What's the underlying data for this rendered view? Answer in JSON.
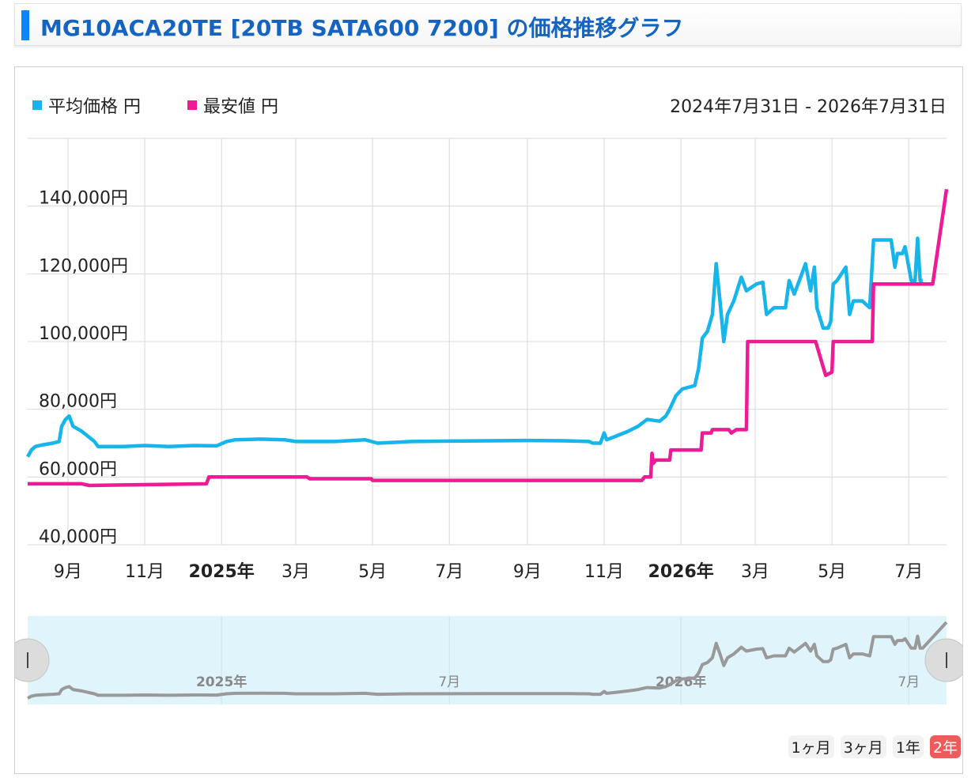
{
  "page": {
    "title": "MG10ACA20TE [20TB SATA600 7200] の価格推移グラフ"
  },
  "chart_data": {
    "type": "line",
    "date_range_label": "2024年7月31日 - 2026年7月31日",
    "x_range": [
      "2024-07-31",
      "2026-07-31"
    ],
    "ylim": [
      40000,
      160000
    ],
    "y_ticks": [
      {
        "value": 40000,
        "label": "40,000円"
      },
      {
        "value": 60000,
        "label": "60,000円"
      },
      {
        "value": 80000,
        "label": "80,000円"
      },
      {
        "value": 100000,
        "label": "100,000円"
      },
      {
        "value": 120000,
        "label": "120,000円"
      },
      {
        "value": 140000,
        "label": "140,000円"
      }
    ],
    "x_ticks": [
      {
        "date": "2024-09-01",
        "label": "9月",
        "bold": false
      },
      {
        "date": "2024-11-01",
        "label": "11月",
        "bold": false
      },
      {
        "date": "2025-01-01",
        "label": "2025年",
        "bold": true
      },
      {
        "date": "2025-03-01",
        "label": "3月",
        "bold": false
      },
      {
        "date": "2025-05-01",
        "label": "5月",
        "bold": false
      },
      {
        "date": "2025-07-01",
        "label": "7月",
        "bold": false
      },
      {
        "date": "2025-09-01",
        "label": "9月",
        "bold": false
      },
      {
        "date": "2025-11-01",
        "label": "11月",
        "bold": false
      },
      {
        "date": "2026-01-01",
        "label": "2026年",
        "bold": true
      },
      {
        "date": "2026-03-01",
        "label": "3月",
        "bold": false
      },
      {
        "date": "2026-05-01",
        "label": "5月",
        "bold": false
      },
      {
        "date": "2026-07-01",
        "label": "7月",
        "bold": false
      }
    ],
    "grid": true,
    "legend_position": "top-left",
    "series": [
      {
        "name": "平均価格 円",
        "color": "#16b5ea",
        "points": [
          [
            "2024-07-31",
            66000
          ],
          [
            "2024-08-03",
            68000
          ],
          [
            "2024-08-06",
            69000
          ],
          [
            "2024-08-12",
            69500
          ],
          [
            "2024-08-20",
            70000
          ],
          [
            "2024-08-25",
            70500
          ],
          [
            "2024-08-27",
            75000
          ],
          [
            "2024-08-30",
            77000
          ],
          [
            "2024-09-02",
            78000
          ],
          [
            "2024-09-05",
            75000
          ],
          [
            "2024-09-12",
            73500
          ],
          [
            "2024-09-22",
            70500
          ],
          [
            "2024-09-25",
            69000
          ],
          [
            "2024-10-15",
            69000
          ],
          [
            "2024-11-01",
            69300
          ],
          [
            "2024-11-20",
            69000
          ],
          [
            "2024-12-10",
            69300
          ],
          [
            "2024-12-28",
            69200
          ],
          [
            "2025-01-05",
            70500
          ],
          [
            "2025-01-12",
            71000
          ],
          [
            "2025-02-01",
            71200
          ],
          [
            "2025-02-20",
            71000
          ],
          [
            "2025-03-01",
            70500
          ],
          [
            "2025-04-01",
            70500
          ],
          [
            "2025-04-25",
            71000
          ],
          [
            "2025-05-05",
            70000
          ],
          [
            "2025-06-01",
            70500
          ],
          [
            "2025-07-01",
            70600
          ],
          [
            "2025-08-01",
            70700
          ],
          [
            "2025-09-01",
            70800
          ],
          [
            "2025-10-01",
            70700
          ],
          [
            "2025-10-20",
            70500
          ],
          [
            "2025-10-23",
            70000
          ],
          [
            "2025-10-29",
            70000
          ],
          [
            "2025-11-01",
            73000
          ],
          [
            "2025-11-03",
            71000
          ],
          [
            "2025-11-10",
            72000
          ],
          [
            "2025-11-20",
            73500
          ],
          [
            "2025-11-28",
            75000
          ],
          [
            "2025-12-05",
            77000
          ],
          [
            "2025-12-15",
            76500
          ],
          [
            "2025-12-20",
            78000
          ],
          [
            "2025-12-23",
            80000
          ],
          [
            "2025-12-28",
            84000
          ],
          [
            "2026-01-02",
            86000
          ],
          [
            "2026-01-12",
            87000
          ],
          [
            "2026-01-15",
            92000
          ],
          [
            "2026-01-18",
            101000
          ],
          [
            "2026-01-22",
            103000
          ],
          [
            "2026-01-26",
            108000
          ],
          [
            "2026-01-29",
            123000
          ],
          [
            "2026-02-01",
            112000
          ],
          [
            "2026-02-04",
            100000
          ],
          [
            "2026-02-07",
            108000
          ],
          [
            "2026-02-12",
            112000
          ],
          [
            "2026-02-18",
            119000
          ],
          [
            "2026-02-22",
            115000
          ],
          [
            "2026-03-02",
            117000
          ],
          [
            "2026-03-07",
            117500
          ],
          [
            "2026-03-10",
            108000
          ],
          [
            "2026-03-16",
            110000
          ],
          [
            "2026-03-25",
            110000
          ],
          [
            "2026-03-28",
            118000
          ],
          [
            "2026-04-01",
            114000
          ],
          [
            "2026-04-05",
            118000
          ],
          [
            "2026-04-10",
            123000
          ],
          [
            "2026-04-14",
            115000
          ],
          [
            "2026-04-17",
            122000
          ],
          [
            "2026-04-19",
            110000
          ],
          [
            "2026-04-24",
            104000
          ],
          [
            "2026-04-28",
            104000
          ],
          [
            "2026-04-30",
            106000
          ],
          [
            "2026-05-02",
            117000
          ],
          [
            "2026-05-05",
            118000
          ],
          [
            "2026-05-12",
            122000
          ],
          [
            "2026-05-15",
            108000
          ],
          [
            "2026-05-18",
            112000
          ],
          [
            "2026-05-25",
            112000
          ],
          [
            "2026-05-31",
            110000
          ],
          [
            "2026-06-03",
            130000
          ],
          [
            "2026-06-10",
            130000
          ],
          [
            "2026-06-17",
            130000
          ],
          [
            "2026-06-20",
            122000
          ],
          [
            "2026-06-22",
            126000
          ],
          [
            "2026-06-26",
            126000
          ],
          [
            "2026-06-28",
            128000
          ],
          [
            "2026-07-03",
            118000
          ],
          [
            "2026-07-06",
            118000
          ],
          [
            "2026-07-08",
            130500
          ],
          [
            "2026-07-10",
            118000
          ],
          [
            "2026-07-12",
            118000
          ]
        ]
      },
      {
        "name": "最安値 円",
        "color": "#ee1b96",
        "points": [
          [
            "2024-07-31",
            58000
          ],
          [
            "2024-09-12",
            58000
          ],
          [
            "2024-09-18",
            57500
          ],
          [
            "2024-12-20",
            58000
          ],
          [
            "2024-12-22",
            60000
          ],
          [
            "2025-03-10",
            60000
          ],
          [
            "2025-03-12",
            59500
          ],
          [
            "2025-04-30",
            59500
          ],
          [
            "2025-05-01",
            59000
          ],
          [
            "2025-12-01",
            59000
          ],
          [
            "2025-12-03",
            60000
          ],
          [
            "2025-12-08",
            60000
          ],
          [
            "2025-12-09",
            67000
          ],
          [
            "2025-12-10",
            64000
          ],
          [
            "2025-12-12",
            65000
          ],
          [
            "2025-12-23",
            65000
          ],
          [
            "2025-12-24",
            68000
          ],
          [
            "2026-01-17",
            68000
          ],
          [
            "2026-01-18",
            73000
          ],
          [
            "2026-01-25",
            73000
          ],
          [
            "2026-01-26",
            74000
          ],
          [
            "2026-02-08",
            74000
          ],
          [
            "2026-02-10",
            73000
          ],
          [
            "2026-02-14",
            74000
          ],
          [
            "2026-02-22",
            74000
          ],
          [
            "2026-02-23",
            100000
          ],
          [
            "2026-04-18",
            100000
          ],
          [
            "2026-04-22",
            95000
          ],
          [
            "2026-04-26",
            90000
          ],
          [
            "2026-05-01",
            91000
          ],
          [
            "2026-05-02",
            100000
          ],
          [
            "2026-06-02",
            100000
          ],
          [
            "2026-06-03",
            117000
          ],
          [
            "2026-07-20",
            117000
          ],
          [
            "2026-07-31",
            145000
          ]
        ]
      }
    ],
    "navigator": {
      "labels": [
        {
          "date": "2025-01-01",
          "label": "2025年",
          "bold": true
        },
        {
          "date": "2025-07-01",
          "label": "7月",
          "bold": false
        },
        {
          "date": "2026-01-01",
          "label": "2026年",
          "bold": true
        },
        {
          "date": "2026-07-01",
          "label": "7月",
          "bold": false
        }
      ]
    }
  },
  "range_buttons": [
    "1ヶ月",
    "3ヶ月",
    "1年",
    "2年"
  ],
  "active_range": "2年"
}
